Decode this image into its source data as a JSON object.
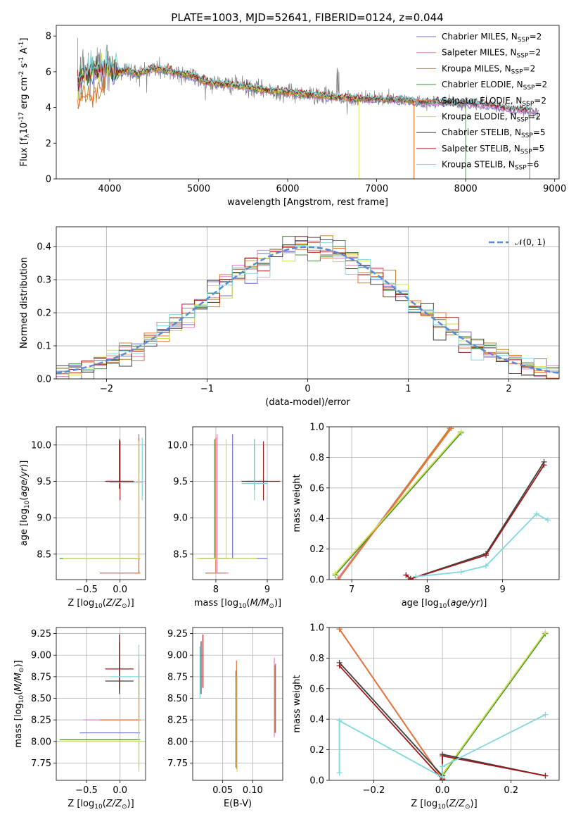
{
  "figure": {
    "title": "PLATE=1003, MJD=52641, FIBERID=0124, z=0.044"
  },
  "models": [
    {
      "name": "Chabrier MILES, N$_{SSP}$=2",
      "base": "Chabrier MILES, N",
      "nssp": "=2",
      "color": "#6f6fd4"
    },
    {
      "name": "Salpeter MILES, N$_{SSP}$=2",
      "base": "Salpeter MILES, N",
      "nssp": "=2",
      "color": "#e07fc0"
    },
    {
      "name": "Kroupa MILES, N$_{SSP}$=2",
      "base": "Kroupa MILES, N",
      "nssp": "=2",
      "color": "#c98020"
    },
    {
      "name": "Chabrier ELODIE, N$_{SSP}$=2",
      "base": "Chabrier ELODIE, N",
      "nssp": "=2",
      "color": "#3f8f3f"
    },
    {
      "name": "Salpeter ELODIE, N$_{SSP}$=2",
      "base": "Salpeter ELODIE, N",
      "nssp": "=2",
      "color": "#e8763a"
    },
    {
      "name": "Kroupa ELODIE, N$_{SSP}$=2",
      "base": "Kroupa ELODIE, N",
      "nssp": "=2",
      "color": "#d4e04a"
    },
    {
      "name": "Chabrier STELIB, N$_{SSP}$=5",
      "base": "Chabrier STELIB, N",
      "nssp": "=5",
      "color": "#404040"
    },
    {
      "name": "Salpeter STELIB, N$_{SSP}$=5",
      "base": "Salpeter STELIB, N",
      "nssp": "=5",
      "color": "#a01818"
    },
    {
      "name": "Kroupa STELIB, N$_{SSP}$=6",
      "base": "Kroupa STELIB, N",
      "nssp": "=6",
      "color": "#7fd8dc"
    }
  ],
  "chart_data": [
    {
      "id": "spectrum",
      "type": "line",
      "xlabel": "wavelength [Angstrom, rest frame]",
      "ylabel": "Flux [f$_\\lambda$10$^{-17}$ erg cm$^{-2}$ s$^{-1}$ A$^{-1}$]",
      "xlim": [
        3400,
        9050
      ],
      "ylim": [
        0,
        8.6
      ],
      "xticks": [
        4000,
        5000,
        6000,
        7000,
        8000,
        9000
      ],
      "yticks": [
        0,
        2,
        4,
        6,
        8
      ],
      "grid": false,
      "legend": "upper right",
      "data_color": "#808080",
      "continuum": {
        "x": [
          3650,
          3700,
          3800,
          3900,
          4000,
          4100,
          4200,
          4300,
          4400,
          4500,
          4700,
          4900,
          5100,
          5300,
          5500,
          5700,
          5900,
          6100,
          6300,
          6500,
          6700,
          6900,
          7100,
          7300,
          7500,
          7700,
          7900,
          8100,
          8300,
          8500,
          8800
        ],
        "y": [
          5.4,
          5.9,
          6.0,
          6.1,
          6.2,
          6.0,
          6.1,
          5.9,
          6.0,
          6.2,
          6.0,
          5.8,
          5.4,
          5.3,
          5.2,
          5.0,
          4.9,
          4.8,
          4.7,
          4.6,
          4.5,
          4.5,
          4.45,
          4.4,
          4.3,
          4.3,
          4.25,
          4.2,
          4.1,
          3.9,
          3.8
        ]
      }
    },
    {
      "id": "residuals",
      "type": "step",
      "xlabel": "(data-model)/error",
      "ylabel": "Normed distribution",
      "xlim": [
        -2.5,
        2.5
      ],
      "ylim": [
        0,
        0.46
      ],
      "xticks": [
        -2,
        -1,
        0,
        1,
        2
      ],
      "yticks": [
        0.0,
        0.1,
        0.2,
        0.3,
        0.4
      ],
      "grid": true,
      "legend": "upper right",
      "legend_label": "𝒩(0, 1)",
      "gaussian_color": "#5b8bd6",
      "bins": 40
    },
    {
      "id": "age-vs-Z",
      "type": "errorbar",
      "xlabel": "Z [log$_{10}$($Z/Z_\\odot$)]",
      "ylabel": "age  [log$_{10}$($age/yr$)]",
      "xlim": [
        -0.95,
        0.38
      ],
      "ylim": [
        8.15,
        10.25
      ],
      "xticks": [
        -0.5,
        0.0
      ],
      "yticks": [
        8.5,
        9.0,
        9.5,
        10.0
      ],
      "grid": true,
      "items": [
        {
          "m": 0,
          "x": [
            0.0,
            0.3
          ],
          "y": 8.44,
          "ey": [
            9.6,
            10.15
          ]
        },
        {
          "m": 1,
          "x": [
            -0.3,
            0.3
          ],
          "y": 8.24,
          "ey": [
            8.24,
            10.1
          ]
        },
        {
          "m": 2,
          "x": [
            -0.3,
            0.3
          ],
          "y": 8.24,
          "ey": [
            8.24,
            10.1
          ]
        },
        {
          "m": 3,
          "x": [
            -0.9,
            0.3
          ],
          "y": 8.44,
          "ey": [
            8.44,
            10.0
          ]
        },
        {
          "m": 4,
          "x": [
            -0.3,
            0.3
          ],
          "y": 8.24,
          "ey": [
            8.24,
            10.13
          ]
        },
        {
          "m": 5,
          "x": [
            -0.85,
            0.3
          ],
          "y": 8.44,
          "ey": [
            8.44,
            10.05
          ]
        },
        {
          "m": 6,
          "x": [
            -0.22,
            0.2
          ],
          "y": 9.5,
          "ey": [
            9.4,
            10.08
          ]
        },
        {
          "m": 7,
          "x": [
            -0.2,
            0.2
          ],
          "y": 9.5,
          "ey": [
            9.24,
            10.06
          ]
        },
        {
          "m": 8,
          "x": [
            -0.15,
            0.35
          ],
          "y": 9.48,
          "ey": [
            9.24,
            10.1
          ]
        }
      ]
    },
    {
      "id": "age-vs-mass",
      "type": "errorbar",
      "xlabel": "mass [log$_{10}$($M/M_\\odot$)]",
      "ylabel": "",
      "xlim": [
        7.55,
        9.3
      ],
      "ylim": [
        8.15,
        10.25
      ],
      "xticks": [
        8,
        9
      ],
      "yticks": [
        8.5,
        9.0,
        9.5,
        10.0
      ],
      "grid": true,
      "items": [
        {
          "m": 0,
          "x": [
            7.65,
            9.0
          ],
          "y": 8.44,
          "ey": [
            8.44,
            10.15
          ]
        },
        {
          "m": 1,
          "x": [
            7.8,
            8.25
          ],
          "y": 8.24,
          "ey": [
            8.24,
            10.15
          ]
        },
        {
          "m": 2,
          "x": [
            7.8,
            8.2
          ],
          "y": 8.24,
          "ey": [
            8.24,
            10.1
          ]
        },
        {
          "m": 3,
          "x": [
            7.7,
            8.25
          ],
          "y": 8.44,
          "ey": [
            8.44,
            10.08
          ]
        },
        {
          "m": 4,
          "x": [
            7.8,
            8.2
          ],
          "y": 8.24,
          "ey": [
            8.24,
            10.1
          ]
        },
        {
          "m": 5,
          "x": [
            7.6,
            8.8
          ],
          "y": 8.44,
          "ey": [
            8.44,
            10.08
          ]
        },
        {
          "m": 6,
          "x": [
            8.5,
            9.0
          ],
          "y": 9.5,
          "ey": [
            9.38,
            10.08
          ]
        },
        {
          "m": 7,
          "x": [
            8.6,
            9.25
          ],
          "y": 9.5,
          "ey": [
            9.24,
            10.05
          ]
        },
        {
          "m": 8,
          "x": [
            8.5,
            9.0
          ],
          "y": 9.47,
          "ey": [
            9.24,
            10.08
          ]
        }
      ]
    },
    {
      "id": "mass-weight-vs-age",
      "type": "line",
      "xlabel": "age  [log$_{10}$($age/yr$)]",
      "ylabel": "mass weight",
      "xlim": [
        6.7,
        9.75
      ],
      "ylim": [
        0,
        1.0
      ],
      "xticks": [
        7,
        8,
        9
      ],
      "yticks": [
        0.0,
        0.2,
        0.4,
        0.6,
        0.8,
        1.0
      ],
      "grid": true,
      "series": [
        {
          "m": 0,
          "x": [
            6.82,
            8.3
          ],
          "y": [
            0.0,
            0.99
          ]
        },
        {
          "m": 1,
          "x": [
            6.82,
            8.3
          ],
          "y": [
            0.01,
            0.99
          ]
        },
        {
          "m": 2,
          "x": [
            6.82,
            8.3
          ],
          "y": [
            0.0,
            0.99
          ]
        },
        {
          "m": 3,
          "x": [
            6.78,
            8.45
          ],
          "y": [
            0.03,
            0.96
          ]
        },
        {
          "m": 4,
          "x": [
            6.82,
            8.32
          ],
          "y": [
            0.0,
            0.99
          ]
        },
        {
          "m": 5,
          "x": [
            6.78,
            8.45
          ],
          "y": [
            0.04,
            0.97
          ]
        },
        {
          "m": 6,
          "x": [
            7.72,
            7.78,
            8.78,
            9.55
          ],
          "y": [
            0.03,
            0.005,
            0.17,
            0.77
          ]
        },
        {
          "m": 7,
          "x": [
            7.72,
            7.78,
            8.78,
            9.55
          ],
          "y": [
            0.03,
            0.005,
            0.16,
            0.75
          ]
        },
        {
          "m": 8,
          "x": [
            7.85,
            8.45,
            8.78,
            9.45,
            9.6
          ],
          "y": [
            0.02,
            0.05,
            0.09,
            0.43,
            0.39
          ]
        }
      ]
    },
    {
      "id": "mass-vs-Z",
      "type": "errorbar",
      "xlabel": "Z [log$_{10}$($Z/Z_\\odot$)]",
      "ylabel": "mass [log$_{10}$($M/M_\\odot$)]",
      "xlim": [
        -0.95,
        0.38
      ],
      "ylim": [
        7.55,
        9.32
      ],
      "xticks": [
        -0.5,
        0.0
      ],
      "yticks": [
        7.75,
        8.0,
        8.25,
        8.5,
        8.75,
        9.0,
        9.25
      ],
      "grid": true,
      "items": [
        {
          "m": 0,
          "x": [
            -0.6,
            0.3
          ],
          "y": 8.1,
          "ey": [
            8.05,
            8.95
          ]
        },
        {
          "m": 1,
          "x": [
            -0.55,
            0.3
          ],
          "y": 8.25,
          "ey": [
            8.25,
            8.95
          ]
        },
        {
          "m": 2,
          "x": [
            -0.3,
            0.3
          ],
          "y": 8.25,
          "ey": [
            8.25,
            8.9
          ]
        },
        {
          "m": 3,
          "x": [
            -0.9,
            0.3
          ],
          "y": 8.02,
          "ey": [
            7.7,
            8.8
          ]
        },
        {
          "m": 4,
          "x": [
            -0.3,
            0.3
          ],
          "y": 8.25,
          "ey": [
            8.25,
            8.9
          ]
        },
        {
          "m": 5,
          "x": [
            -0.85,
            0.3
          ],
          "y": 8.0,
          "ey": [
            7.65,
            8.75
          ]
        },
        {
          "m": 6,
          "x": [
            -0.22,
            0.2
          ],
          "y": 8.7,
          "ey": [
            8.55,
            9.15
          ]
        },
        {
          "m": 7,
          "x": [
            -0.22,
            0.2
          ],
          "y": 8.84,
          "ey": [
            8.6,
            9.24
          ]
        },
        {
          "m": 8,
          "x": [
            -0.15,
            0.3
          ],
          "y": 8.75,
          "ey": [
            8.5,
            9.12
          ]
        }
      ]
    },
    {
      "id": "mass-vs-ebv",
      "type": "errorbar",
      "xlabel": "E(B-V)",
      "ylabel": "",
      "xlim": [
        0.0,
        0.15
      ],
      "ylim": [
        7.55,
        9.32
      ],
      "xticks": [
        0.05,
        0.1
      ],
      "yticks": [
        7.75,
        8.0,
        8.25,
        8.5,
        8.75,
        9.0,
        9.25
      ],
      "grid": true,
      "items": [
        {
          "m": 0,
          "x": [
            0.138,
            0.138
          ],
          "y": 8.5,
          "ey": [
            8.1,
            8.9
          ]
        },
        {
          "m": 1,
          "x": [
            0.136,
            0.136
          ],
          "y": 8.5,
          "ey": [
            8.05,
            8.97
          ]
        },
        {
          "m": 2,
          "x": [
            0.137,
            0.137
          ],
          "y": 8.5,
          "ey": [
            8.1,
            8.88
          ]
        },
        {
          "m": 3,
          "x": [
            0.072,
            0.072
          ],
          "y": 8.3,
          "ey": [
            7.7,
            8.82
          ]
        },
        {
          "m": 4,
          "x": [
            0.073,
            0.073
          ],
          "y": 8.3,
          "ey": [
            7.68,
            8.94
          ]
        },
        {
          "m": 5,
          "x": [
            0.074,
            0.074
          ],
          "y": 8.3,
          "ey": [
            7.65,
            8.75
          ]
        },
        {
          "m": 6,
          "x": [
            0.014,
            0.014
          ],
          "y": 8.8,
          "ey": [
            8.55,
            9.16
          ]
        },
        {
          "m": 7,
          "x": [
            0.017,
            0.017
          ],
          "y": 8.9,
          "ey": [
            8.62,
            9.24
          ]
        },
        {
          "m": 8,
          "x": [
            0.012,
            0.012
          ],
          "y": 8.8,
          "ey": [
            8.5,
            9.1
          ]
        }
      ]
    },
    {
      "id": "mass-weight-vs-Z",
      "type": "line",
      "xlabel": "Z [log$_{10}$($Z/Z_\\odot$)]",
      "ylabel": "mass weight",
      "xlim": [
        -0.33,
        0.34
      ],
      "ylim": [
        0,
        1.0
      ],
      "xticks": [
        -0.2,
        0.0,
        0.2
      ],
      "yticks": [
        0.0,
        0.2,
        0.4,
        0.6,
        0.8,
        1.0
      ],
      "grid": true,
      "series": [
        {
          "m": 0,
          "x": [
            -0.3,
            0.0
          ],
          "y": [
            0.99,
            0.01
          ]
        },
        {
          "m": 1,
          "x": [
            -0.3,
            0.0
          ],
          "y": [
            0.99,
            0.01
          ]
        },
        {
          "m": 2,
          "x": [
            -0.3,
            0.0
          ],
          "y": [
            0.99,
            0.01
          ]
        },
        {
          "m": 3,
          "x": [
            0.0,
            0.3
          ],
          "y": [
            0.03,
            0.96
          ]
        },
        {
          "m": 4,
          "x": [
            -0.3,
            0.0
          ],
          "y": [
            0.99,
            0.01
          ]
        },
        {
          "m": 5,
          "x": [
            0.0,
            0.3
          ],
          "y": [
            0.04,
            0.97
          ]
        },
        {
          "m": 6,
          "x": [
            -0.3,
            0.0,
            0.0,
            0.3
          ],
          "y": [
            0.77,
            0.03,
            0.17,
            0.03
          ]
        },
        {
          "m": 7,
          "x": [
            -0.3,
            0.0,
            0.0,
            0.3
          ],
          "y": [
            0.75,
            0.005,
            0.16,
            0.03
          ]
        },
        {
          "m": 8,
          "x": [
            -0.3,
            -0.3,
            0.0,
            0.0,
            0.3
          ],
          "y": [
            0.05,
            0.39,
            0.02,
            0.09,
            0.43
          ]
        }
      ]
    }
  ]
}
